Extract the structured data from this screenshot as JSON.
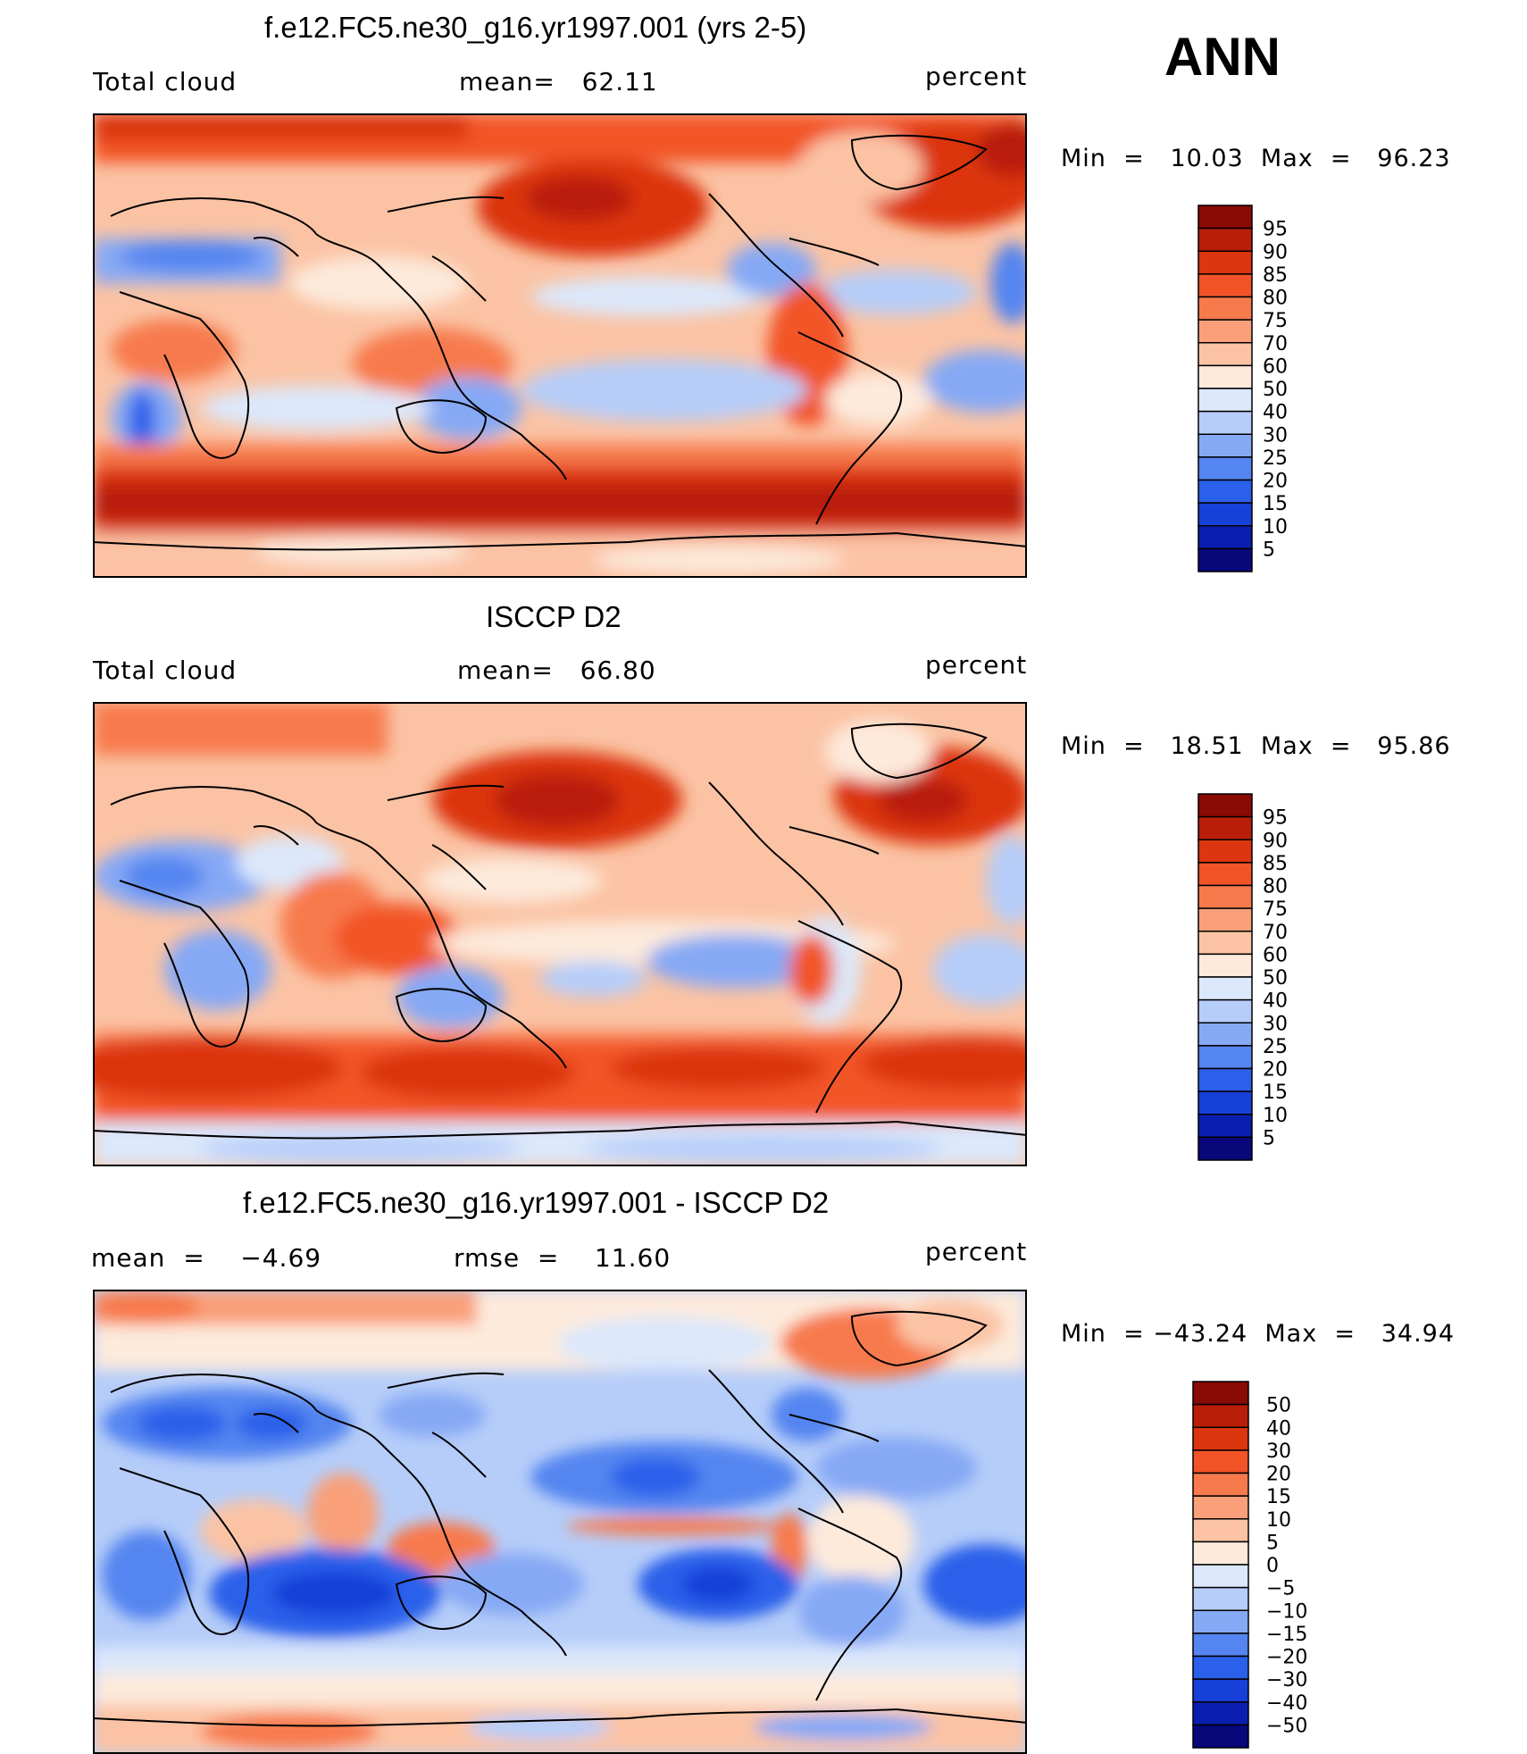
{
  "season": "ANN",
  "colors": {
    "abs_scale": [
      "#08087a",
      "#0a1fb0",
      "#1640d8",
      "#2a60ea",
      "#5585f0",
      "#86a9f5",
      "#b6cdf9",
      "#dce8fb",
      "#fdeadb",
      "#fbc3a4",
      "#f9a07a",
      "#f77a4d",
      "#f25428",
      "#dc3510",
      "#b81e08",
      "#8a0a04"
    ],
    "diff_scale": [
      "#08087a",
      "#0a1fb0",
      "#1640d8",
      "#2a60ea",
      "#5585f0",
      "#86a9f5",
      "#b6cdf9",
      "#dce8fb",
      "#fdeadb",
      "#fbc3a4",
      "#f9a07a",
      "#f77a4d",
      "#f25428",
      "#dc3510",
      "#b81e08",
      "#8a0a04"
    ]
  },
  "panels": [
    {
      "title": "f.e12.FC5.ne30_g16.yr1997.001 (yrs 2-5)",
      "left_label": "Total cloud",
      "center_label": "mean=   62.11",
      "right_label": "percent",
      "minmax": "Min  =   10.03  Max  =   96.23"
    },
    {
      "title": "ISCCP D2",
      "left_label": "Total cloud",
      "center_label": "mean=   66.80",
      "right_label": "percent",
      "minmax": "Min  =   18.51  Max  =   95.86"
    },
    {
      "title": "f.e12.FC5.ne30_g16.yr1997.001 - ISCCP D2",
      "left_label": "mean  =    −4.69",
      "center_label": "rmse  =    11.60",
      "right_label": "percent",
      "minmax": "Min  = −43.24  Max  =   34.94"
    }
  ],
  "chart_data": [
    {
      "type": "heatmap",
      "title": "f.e12.FC5.ne30_g16.yr1997.001 (yrs 2-5)",
      "variable": "Total cloud",
      "units": "percent",
      "mean": 62.11,
      "min": 10.03,
      "max": 96.23,
      "colorbar_levels": [
        "95",
        "90",
        "85",
        "80",
        "75",
        "70",
        "60",
        "50",
        "40",
        "30",
        "25",
        "20",
        "15",
        "10",
        "5"
      ]
    },
    {
      "type": "heatmap",
      "title": "ISCCP D2",
      "variable": "Total cloud",
      "units": "percent",
      "mean": 66.8,
      "min": 18.51,
      "max": 95.86,
      "colorbar_levels": [
        "95",
        "90",
        "85",
        "80",
        "75",
        "70",
        "60",
        "50",
        "40",
        "30",
        "25",
        "20",
        "15",
        "10",
        "5"
      ]
    },
    {
      "type": "heatmap",
      "title": "f.e12.FC5.ne30_g16.yr1997.001 - ISCCP D2",
      "units": "percent",
      "mean": -4.69,
      "rmse": 11.6,
      "min": -43.24,
      "max": 34.94,
      "colorbar_levels": [
        "50",
        "40",
        "30",
        "20",
        "15",
        "10",
        "5",
        "0",
        "−5",
        "−10",
        "−15",
        "−20",
        "−30",
        "−40",
        "−50"
      ]
    }
  ]
}
